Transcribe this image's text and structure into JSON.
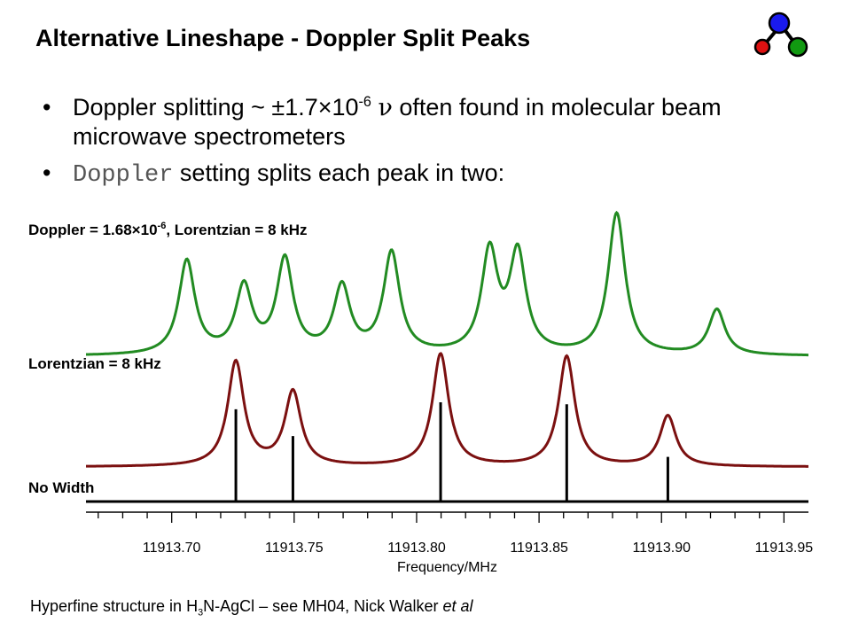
{
  "slide": {
    "title": "Alternative Lineshape - Doppler Split Peaks",
    "bullet1_pre": "Doppler splitting ~ ±1.7×10",
    "bullet1_exp": "-6",
    "bullet1_nu": "ν",
    "bullet1_post": " often found in molecular beam microwave spectrometers",
    "bullet2_code": "Doppler",
    "bullet2_post": " setting splits each peak in two:",
    "footer_pre": "Hyperfine structure in H",
    "footer_sub": "3",
    "footer_mid": "N-AgCl – see MH04, Nick Walker ",
    "footer_em": "et al"
  },
  "colors": {
    "doppler": "#228B22",
    "lorentzian": "#7B1010",
    "stick": "#000000"
  },
  "logo": {
    "icon": "molecule-icon",
    "colors": [
      "#1a1aee",
      "#dd1111",
      "#119911"
    ]
  },
  "chart_data": {
    "type": "line",
    "xlabel": "Frequency/MHz",
    "ylabel": "",
    "xlim": [
      11913.665,
      11913.96
    ],
    "xticks": [
      "11913.70",
      "11913.75",
      "11913.80",
      "11913.85",
      "11913.90",
      "11913.95"
    ],
    "grid": false,
    "peaks": [
      {
        "x": 11913.7262,
        "intensity": 0.93
      },
      {
        "x": 11913.7495,
        "intensity": 0.66
      },
      {
        "x": 11913.8098,
        "intensity": 1.0
      },
      {
        "x": 11913.8613,
        "intensity": 0.98
      },
      {
        "x": 11913.9026,
        "intensity": 0.45
      }
    ],
    "series": [
      {
        "name": "Doppler = 1.68×10-6, Lorentzian = 8 kHz",
        "label_pre": "Doppler = 1.68×10",
        "label_exp": "-6",
        "label_post": ", Lorentzian = 8 kHz",
        "lineshape": "doppler",
        "doppler": 1.68e-06,
        "width_kHz": 8
      },
      {
        "name": "Lorentzian = 8 kHz",
        "lineshape": "lorentzian",
        "width_kHz": 8
      },
      {
        "name": "No Width",
        "lineshape": "stick"
      }
    ]
  }
}
